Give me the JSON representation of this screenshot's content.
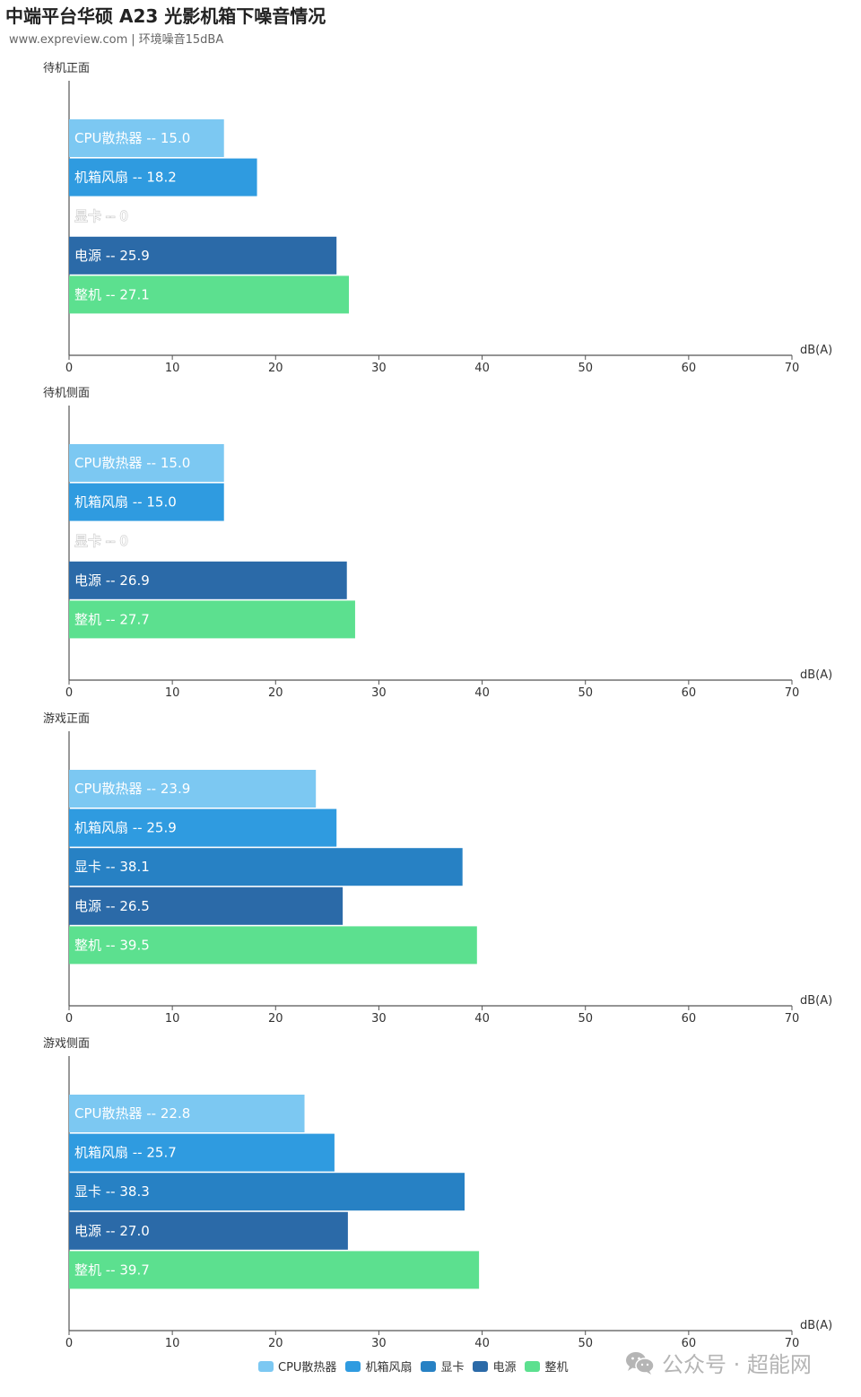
{
  "header": {
    "title": "中端平台华硕 A23 光影机箱下噪音情况",
    "source": "www.expreview.com",
    "note": "环境噪音15dBA"
  },
  "colors": {
    "CPU散热器": "#7cc8f2",
    "机箱风扇": "#2f9be0",
    "显卡": "#2781c4",
    "电源": "#2b6aa8",
    "整机": "#5ce08f"
  },
  "legend": [
    "CPU散热器",
    "机箱风扇",
    "显卡",
    "电源",
    "整机"
  ],
  "watermark": "公众号 · 超能网",
  "chart_data": [
    {
      "type": "bar",
      "orientation": "horizontal",
      "title": "待机正面",
      "categories": [
        "CPU散热器",
        "机箱风扇",
        "显卡",
        "电源",
        "整机"
      ],
      "values": [
        15.0,
        18.2,
        0,
        25.9,
        27.1
      ],
      "value_labels": [
        "15.0",
        "18.2",
        "0",
        "25.9",
        "27.1"
      ],
      "xlabel": "dB(A)",
      "xlim": [
        0,
        70
      ],
      "xticks": [
        0,
        10,
        20,
        30,
        40,
        50,
        60,
        70
      ],
      "grid": false
    },
    {
      "type": "bar",
      "orientation": "horizontal",
      "title": "待机侧面",
      "categories": [
        "CPU散热器",
        "机箱风扇",
        "显卡",
        "电源",
        "整机"
      ],
      "values": [
        15.0,
        15.0,
        0,
        26.9,
        27.7
      ],
      "value_labels": [
        "15.0",
        "15.0",
        "0",
        "26.9",
        "27.7"
      ],
      "xlabel": "dB(A)",
      "xlim": [
        0,
        70
      ],
      "xticks": [
        0,
        10,
        20,
        30,
        40,
        50,
        60,
        70
      ],
      "grid": false
    },
    {
      "type": "bar",
      "orientation": "horizontal",
      "title": "游戏正面",
      "categories": [
        "CPU散热器",
        "机箱风扇",
        "显卡",
        "电源",
        "整机"
      ],
      "values": [
        23.9,
        25.9,
        38.1,
        26.5,
        39.5
      ],
      "value_labels": [
        "23.9",
        "25.9",
        "38.1",
        "26.5",
        "39.5"
      ],
      "xlabel": "dB(A)",
      "xlim": [
        0,
        70
      ],
      "xticks": [
        0,
        10,
        20,
        30,
        40,
        50,
        60,
        70
      ],
      "grid": false
    },
    {
      "type": "bar",
      "orientation": "horizontal",
      "title": "游戏侧面",
      "categories": [
        "CPU散热器",
        "机箱风扇",
        "显卡",
        "电源",
        "整机"
      ],
      "values": [
        22.8,
        25.7,
        38.3,
        27.0,
        39.7
      ],
      "value_labels": [
        "22.8",
        "25.7",
        "38.3",
        "27.0",
        "39.7"
      ],
      "xlabel": "dB(A)",
      "xlim": [
        0,
        70
      ],
      "xticks": [
        0,
        10,
        20,
        30,
        40,
        50,
        60,
        70
      ],
      "grid": false
    }
  ]
}
